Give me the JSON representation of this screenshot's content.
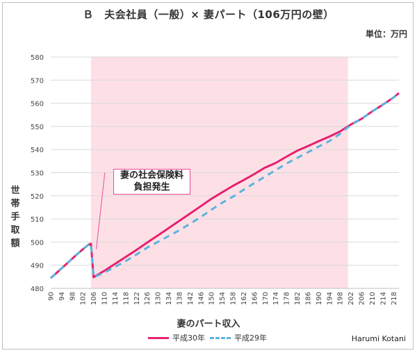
{
  "chart_data": {
    "type": "line",
    "title": "Ｂ　夫会社員（一般）× 妻パート（106万円の壁）",
    "unit_label": "単位：万円",
    "xlabel": "妻のパート収入",
    "ylabel": "世帯手取額",
    "ylim": [
      480,
      580
    ],
    "yticks": [
      480,
      490,
      500,
      510,
      520,
      530,
      540,
      550,
      560,
      570,
      580
    ],
    "xlim": [
      90,
      220
    ],
    "xticks": [
      90,
      94,
      98,
      102,
      106,
      110,
      114,
      118,
      122,
      126,
      130,
      134,
      138,
      142,
      146,
      150,
      154,
      158,
      162,
      166,
      170,
      174,
      178,
      182,
      186,
      190,
      194,
      198,
      202,
      206,
      210,
      214,
      218
    ],
    "grid": true,
    "highlight_region": {
      "x_from": 105,
      "x_to": 201,
      "color": "#fde0e6"
    },
    "annotation": {
      "line1": "妻の社会保険料",
      "line2": "負担発生"
    },
    "legend_position": "bottom",
    "series": [
      {
        "name": "平成30年",
        "color": "#e8206e",
        "dash": "solid",
        "points": [
          [
            90,
            484.4
          ],
          [
            92,
            486.5
          ],
          [
            94,
            488.6
          ],
          [
            96,
            490.7
          ],
          [
            98,
            492.8
          ],
          [
            100,
            494.9
          ],
          [
            102,
            496.9
          ],
          [
            104,
            498.8
          ],
          [
            105,
            499.3
          ],
          [
            106,
            484.8
          ],
          [
            110,
            487.6
          ],
          [
            114,
            490.6
          ],
          [
            118,
            493.6
          ],
          [
            122,
            496.6
          ],
          [
            126,
            499.8
          ],
          [
            130,
            502.9
          ],
          [
            134,
            506.0
          ],
          [
            138,
            509.2
          ],
          [
            142,
            512.3
          ],
          [
            146,
            515.5
          ],
          [
            150,
            518.7
          ],
          [
            154,
            521.5
          ],
          [
            158,
            524.3
          ],
          [
            162,
            526.8
          ],
          [
            166,
            529.4
          ],
          [
            170,
            532.2
          ],
          [
            174,
            534.2
          ],
          [
            178,
            536.9
          ],
          [
            182,
            539.5
          ],
          [
            186,
            541.5
          ],
          [
            190,
            543.6
          ],
          [
            194,
            545.6
          ],
          [
            198,
            547.8
          ],
          [
            202,
            550.8
          ],
          [
            206,
            553.2
          ],
          [
            210,
            556.5
          ],
          [
            214,
            559.4
          ],
          [
            218,
            562.5
          ],
          [
            220,
            564.4
          ]
        ]
      },
      {
        "name": "平成29年",
        "color": "#5bb3e0",
        "dash": "dashed",
        "points": [
          [
            90,
            484.4
          ],
          [
            92,
            486.5
          ],
          [
            94,
            488.6
          ],
          [
            96,
            490.7
          ],
          [
            98,
            492.8
          ],
          [
            100,
            494.9
          ],
          [
            102,
            496.9
          ],
          [
            104,
            498.8
          ],
          [
            105,
            499.3
          ],
          [
            106,
            484.8
          ],
          [
            110,
            486.8
          ],
          [
            114,
            489.3
          ],
          [
            118,
            491.8
          ],
          [
            122,
            494.6
          ],
          [
            126,
            497.6
          ],
          [
            130,
            500.1
          ],
          [
            134,
            502.6
          ],
          [
            138,
            505.1
          ],
          [
            142,
            507.9
          ],
          [
            146,
            510.8
          ],
          [
            150,
            514.0
          ],
          [
            154,
            517.0
          ],
          [
            158,
            519.6
          ],
          [
            162,
            522.6
          ],
          [
            166,
            525.5
          ],
          [
            170,
            528.3
          ],
          [
            174,
            531.1
          ],
          [
            178,
            533.9
          ],
          [
            182,
            536.4
          ],
          [
            186,
            538.8
          ],
          [
            190,
            541.3
          ],
          [
            194,
            543.6
          ],
          [
            198,
            546.8
          ],
          [
            202,
            550.6
          ],
          [
            206,
            553.2
          ],
          [
            210,
            556.5
          ],
          [
            214,
            559.4
          ],
          [
            218,
            562.5
          ],
          [
            220,
            564.4
          ]
        ]
      }
    ]
  },
  "author": "Harumi Kotani"
}
